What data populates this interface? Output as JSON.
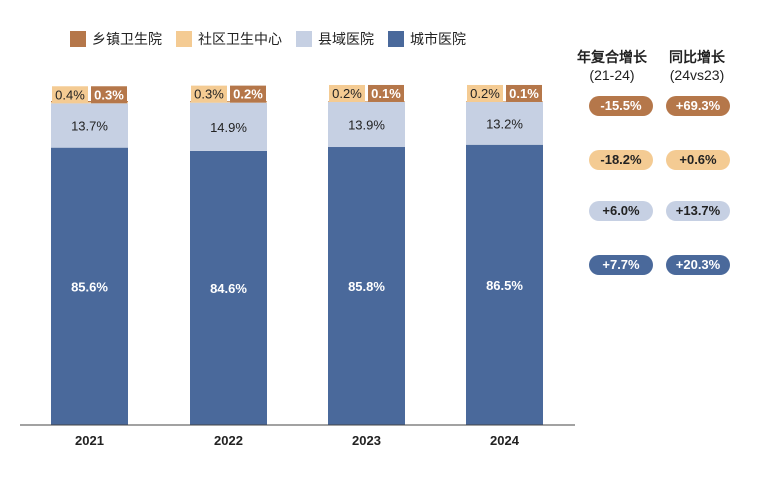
{
  "legend": [
    {
      "name": "乡镇卫生院",
      "color": "#b5774a"
    },
    {
      "name": "社区卫生中心",
      "color": "#f4cb93"
    },
    {
      "name": "县域医院",
      "color": "#c6d0e3"
    },
    {
      "name": "城市医院",
      "color": "#4a699b"
    }
  ],
  "chart_data": {
    "type": "bar",
    "stacked": true,
    "categories": [
      "2021",
      "2022",
      "2023",
      "2024"
    ],
    "series": [
      {
        "name": "城市医院",
        "values": [
          85.6,
          84.6,
          85.8,
          86.5
        ],
        "color": "#4a699b",
        "label_color": "#ffffff"
      },
      {
        "name": "县域医院",
        "values": [
          13.7,
          14.9,
          13.9,
          13.2
        ],
        "color": "#c6d0e3",
        "label_color": "#222222"
      },
      {
        "name": "社区卫生中心",
        "values": [
          0.4,
          0.3,
          0.2,
          0.2
        ],
        "color": "#f4cb93",
        "label_color": "#222222"
      },
      {
        "name": "乡镇卫生院",
        "values": [
          0.3,
          0.2,
          0.1,
          0.1
        ],
        "color": "#b5774a",
        "label_color": "#ffffff"
      }
    ],
    "unit": "%",
    "ylim": [
      0,
      100
    ],
    "grid": false,
    "legend_position": "top"
  },
  "growth": {
    "cagr_header": "年复合增长",
    "cagr_sub": "(21-24)",
    "yoy_header": "同比增长",
    "yoy_sub": "(24vs23)",
    "rows": [
      {
        "series": "乡镇卫生院",
        "cagr": "-15.5%",
        "yoy": "+69.3%",
        "color": "#b5774a",
        "text": "#ffffff"
      },
      {
        "series": "社区卫生中心",
        "cagr": "-18.2%",
        "yoy": "+0.6%",
        "color": "#f4cb93",
        "text": "#222222"
      },
      {
        "series": "县域医院",
        "cagr": "+6.0%",
        "yoy": "+13.7%",
        "color": "#c6d0e3",
        "text": "#222222"
      },
      {
        "series": "城市医院",
        "cagr": "+7.7%",
        "yoy": "+20.3%",
        "color": "#4a699b",
        "text": "#ffffff"
      }
    ]
  }
}
